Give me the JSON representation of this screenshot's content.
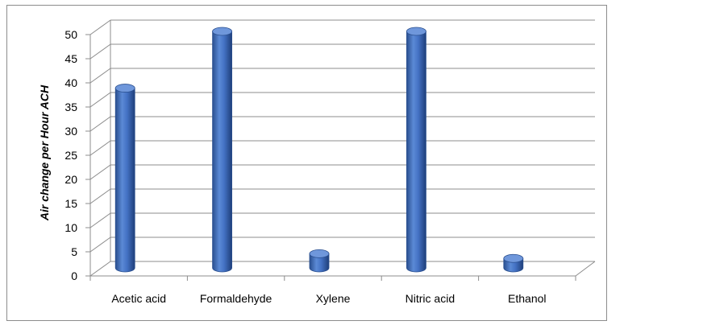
{
  "chart_data": {
    "type": "bar",
    "style": "3d-cylinder",
    "title": "",
    "xlabel": "",
    "ylabel": "Air change per Hour ACH",
    "categories": [
      "Acetic acid",
      "Formaldehyde",
      "Xylene",
      "Nitric acid",
      "Ethanol"
    ],
    "values": [
      38,
      50,
      3,
      50,
      2
    ],
    "ylim": [
      0,
      50
    ],
    "yticks": [
      0,
      5,
      10,
      15,
      20,
      25,
      30,
      35,
      40,
      45,
      50
    ],
    "grid": true,
    "legend": "none",
    "bar_color": "#4472c4"
  }
}
